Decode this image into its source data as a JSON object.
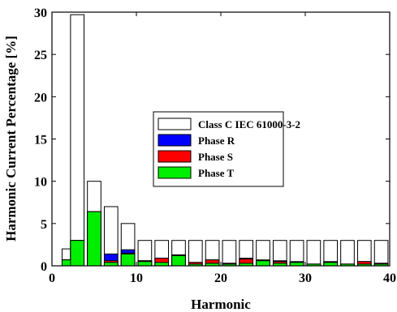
{
  "chart_data": {
    "type": "bar",
    "title": "",
    "xlabel": "Harmonic",
    "ylabel": "Harmonic Current Percentage [%]",
    "xlim": [
      0,
      40
    ],
    "ylim": [
      0,
      30
    ],
    "xticks": [
      0,
      10,
      20,
      30,
      40
    ],
    "yticks": [
      0,
      5,
      10,
      15,
      20,
      25,
      30
    ],
    "grid": false,
    "legend_position": "center-right",
    "categories": [
      1,
      2,
      3,
      5,
      7,
      9,
      11,
      13,
      15,
      17,
      19,
      21,
      23,
      25,
      27,
      29,
      31,
      33,
      35,
      37,
      39
    ],
    "series": [
      {
        "name": "Class C IEC 61000-3-2",
        "color": "#ffffff",
        "x": [
          2,
          3,
          5,
          7,
          9,
          11,
          13,
          15,
          17,
          19,
          21,
          23,
          25,
          27,
          29,
          31,
          33,
          35,
          37,
          39
        ],
        "values": [
          2,
          29.7,
          10,
          7,
          5,
          3,
          3,
          3,
          3,
          3,
          3,
          3,
          3,
          3,
          3,
          3,
          3,
          3,
          3,
          3
        ]
      },
      {
        "name": "Phase R",
        "color": "#0000ff",
        "x": [
          2,
          3,
          5,
          7,
          9,
          11,
          13,
          15,
          17,
          19,
          21,
          23,
          25,
          27,
          29,
          31,
          33,
          35,
          37,
          39
        ],
        "values": [
          0.7,
          3.0,
          6.4,
          1.4,
          1.9,
          0.6,
          0.9,
          1.3,
          0.4,
          0.7,
          0.3,
          0.9,
          0.7,
          0.6,
          0.5,
          0.2,
          0.5,
          0.2,
          0.5,
          0.3
        ]
      },
      {
        "name": "Phase S",
        "color": "#ff0000",
        "x": [
          2,
          3,
          5,
          7,
          9,
          11,
          13,
          15,
          17,
          19,
          21,
          23,
          25,
          27,
          29,
          31,
          33,
          35,
          37,
          39
        ],
        "values": [
          0.7,
          3.0,
          6.4,
          0.6,
          1.5,
          0.6,
          0.9,
          1.2,
          0.4,
          0.7,
          0.3,
          0.8,
          0.6,
          0.5,
          0.4,
          0.2,
          0.4,
          0.2,
          0.5,
          0.3
        ]
      },
      {
        "name": "Phase T",
        "color": "#00ee00",
        "x": [
          2,
          3,
          5,
          7,
          9,
          11,
          13,
          15,
          17,
          19,
          21,
          23,
          25,
          27,
          29,
          31,
          33,
          35,
          37,
          39
        ],
        "values": [
          0.7,
          3.0,
          6.4,
          0.4,
          1.4,
          0.5,
          0.4,
          1.2,
          0.2,
          0.3,
          0.2,
          0.3,
          0.6,
          0.3,
          0.4,
          0.2,
          0.4,
          0.2,
          0.2,
          0.2
        ]
      }
    ]
  }
}
